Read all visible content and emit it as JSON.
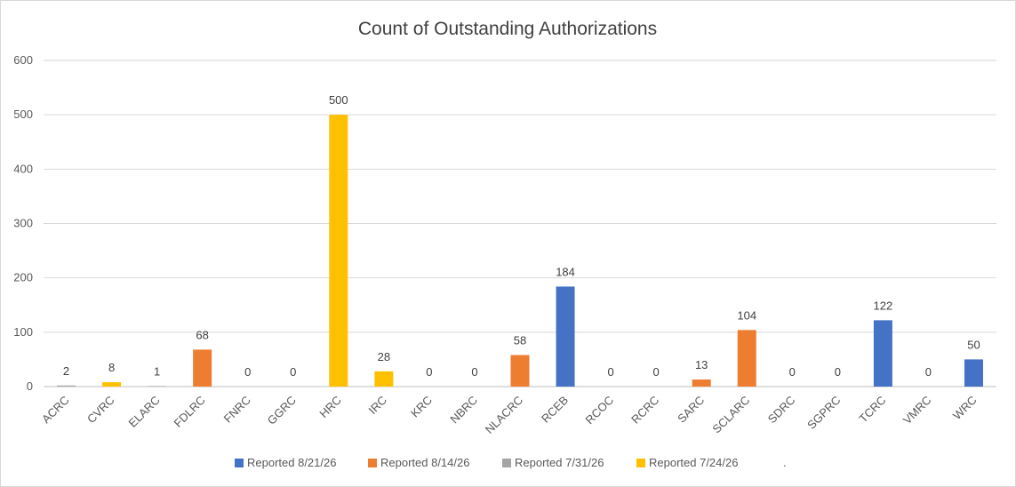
{
  "chart_data": {
    "type": "bar",
    "title": "Count of Outstanding Authorizations",
    "xlabel": "",
    "ylabel": "",
    "ylim": [
      0,
      600
    ],
    "yticks": [
      0,
      100,
      200,
      300,
      400,
      500,
      600
    ],
    "grid": true,
    "legend_position": "bottom",
    "categories": [
      "ACRC",
      "CVRC",
      "ELARC",
      "FDLRC",
      "FNRC",
      "GGRC",
      "HRC",
      "IRC",
      "KRC",
      "NBRC",
      "NLACRC",
      "RCEB",
      "RCOC",
      "RCRC",
      "SARC",
      "SCLARC",
      "SDRC",
      "SGPRC",
      "TCRC",
      "VMRC",
      "WRC"
    ],
    "values": [
      2,
      8,
      1,
      68,
      0,
      0,
      500,
      28,
      0,
      0,
      58,
      184,
      0,
      0,
      13,
      104,
      0,
      0,
      122,
      0,
      50
    ],
    "bar_series": [
      3,
      4,
      3,
      2,
      null,
      null,
      4,
      4,
      null,
      null,
      2,
      1,
      null,
      null,
      2,
      2,
      null,
      null,
      1,
      null,
      1
    ],
    "series": [
      {
        "name": "Reported 8/21/26",
        "color": "#4472c4"
      },
      {
        "name": "Reported 8/14/26",
        "color": "#ed7d31"
      },
      {
        "name": "Reported 7/31/26",
        "color": "#a5a5a5"
      },
      {
        "name": "Reported 7/24/26",
        "color": "#ffc000"
      },
      {
        "name": ".",
        "color": null
      }
    ]
  }
}
